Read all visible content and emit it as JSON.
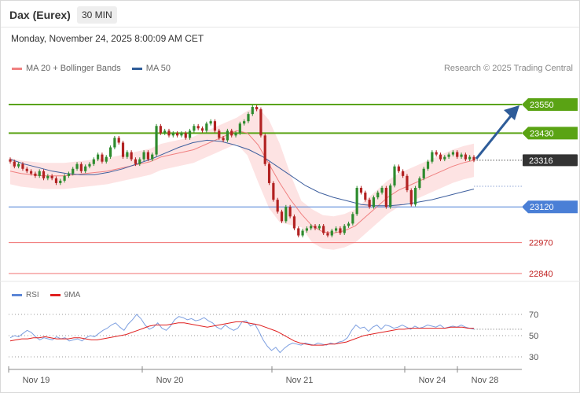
{
  "header": {
    "title": "Dax (Eurex)",
    "timeframe": "30 MIN",
    "datetime": "Monday, November 24, 2025 8:00:09 AM CET",
    "credit": "Research © 2025 Trading Central"
  },
  "legend_main": [
    {
      "label": "MA 20 + Bollinger Bands",
      "color": "#f08080"
    },
    {
      "label": "MA 50",
      "color": "#2e5c99"
    }
  ],
  "legend_rsi": [
    {
      "label": "RSI",
      "color": "#5b86d6"
    },
    {
      "label": "9MA",
      "color": "#e02020"
    }
  ],
  "colors": {
    "up": "#2e8b2e",
    "down": "#b22222",
    "bollinger_fill": "#fde3e3",
    "ma20": "#f08080",
    "ma50": "#3e5f9e",
    "resistance": "#5aa314",
    "support": "#4a7fd6",
    "lower_support": "#f07070",
    "current": "#333333",
    "arrow": "#2e5c99"
  },
  "chart_data": [
    {
      "type": "candlestick",
      "x_labels": [
        "Nov 19",
        "Nov 20",
        "Nov 21",
        "Nov 24",
        "Nov 28"
      ],
      "current_price": 23316,
      "levels": [
        {
          "label": "23550",
          "value": 23550,
          "kind": "resistance"
        },
        {
          "label": "23430",
          "value": 23430,
          "kind": "resistance"
        },
        {
          "label": "23316",
          "value": 23316,
          "kind": "current"
        },
        {
          "label": "23120",
          "value": 23120,
          "kind": "support"
        },
        {
          "label": "22970",
          "value": 22970,
          "kind": "lower_support"
        },
        {
          "label": "22840",
          "value": 22840,
          "kind": "lower_support"
        }
      ],
      "closes": [
        23310,
        23290,
        23300,
        23280,
        23270,
        23260,
        23250,
        23270,
        23240,
        23250,
        23240,
        23220,
        23230,
        23250,
        23260,
        23280,
        23300,
        23270,
        23290,
        23300,
        23320,
        23340,
        23310,
        23330,
        23370,
        23410,
        23390,
        23330,
        23350,
        23320,
        23300,
        23320,
        23350,
        23320,
        23340,
        23460,
        23430,
        23440,
        23420,
        23430,
        23420,
        23430,
        23410,
        23440,
        23460,
        23450,
        23440,
        23470,
        23480,
        23440,
        23410,
        23400,
        23440,
        23420,
        23430,
        23470,
        23480,
        23510,
        23540,
        23530,
        23420,
        23300,
        23220,
        23150,
        23100,
        23060,
        23120,
        23080,
        23030,
        23000,
        23020,
        23030,
        23040,
        23030,
        23040,
        23010,
        23000,
        23020,
        23030,
        23010,
        23040,
        23050,
        23090,
        23200,
        23180,
        23150,
        23120,
        23160,
        23180,
        23200,
        23120,
        23210,
        23290,
        23270,
        23250,
        23190,
        23130,
        23200,
        23240,
        23280,
        23310,
        23350,
        23340,
        23320,
        23330,
        23340,
        23350,
        23330,
        23340,
        23320,
        23330,
        23316
      ],
      "ma20": [
        23270,
        23260,
        23255,
        23250,
        23250,
        23250,
        23255,
        23260,
        23265,
        23270,
        23280,
        23290,
        23300,
        23310,
        23330,
        23340,
        23350,
        23360,
        23380,
        23400,
        23420,
        23440,
        23430,
        23380,
        23300,
        23220,
        23150,
        23090,
        23040,
        23015,
        23010,
        23020,
        23040,
        23080,
        23120,
        23160,
        23190,
        23210,
        23230,
        23250,
        23270,
        23290,
        23305,
        23316
      ],
      "ma50": [
        23320,
        23300,
        23285,
        23270,
        23260,
        23255,
        23255,
        23265,
        23280,
        23300,
        23320,
        23345,
        23370,
        23390,
        23400,
        23395,
        23380,
        23360,
        23330,
        23290,
        23250,
        23210,
        23180,
        23160,
        23145,
        23130,
        23125,
        23125,
        23130,
        23140,
        23150,
        23165,
        23180,
        23195
      ],
      "rsi_axis": [
        70,
        50,
        30
      ],
      "rsi": [
        48,
        50,
        49,
        52,
        55,
        53,
        49,
        46,
        48,
        47,
        46,
        49,
        47,
        48,
        45,
        46,
        47,
        45,
        48,
        50,
        49,
        52,
        55,
        57,
        60,
        62,
        58,
        55,
        61,
        65,
        70,
        66,
        60,
        56,
        58,
        62,
        57,
        55,
        59,
        65,
        68,
        67,
        65,
        66,
        64,
        65,
        67,
        64,
        62,
        58,
        56,
        60,
        57,
        55,
        57,
        63,
        64,
        59,
        61,
        54,
        46,
        40,
        36,
        39,
        34,
        38,
        41,
        43,
        42,
        41,
        43,
        42,
        41,
        43,
        42,
        41,
        43,
        42,
        44,
        45,
        48,
        55,
        60,
        57,
        58,
        54,
        58,
        60,
        56,
        60,
        59,
        57,
        58,
        60,
        58,
        56,
        59,
        57,
        58,
        60,
        59,
        58,
        60,
        57,
        58,
        59,
        58,
        60,
        58,
        57,
        56
      ],
      "rsi_ma": [
        45,
        46,
        47,
        47,
        48,
        48,
        49,
        48,
        47,
        47,
        47,
        48,
        48,
        47,
        46,
        46,
        47,
        48,
        49,
        50,
        51,
        53,
        55,
        57,
        59,
        60,
        60,
        60,
        61,
        62,
        62,
        61,
        60,
        59,
        58,
        59,
        60,
        61,
        62,
        63,
        63,
        62,
        61,
        60,
        58,
        56,
        54,
        51,
        48,
        45,
        43,
        42,
        41,
        41,
        41,
        42,
        42,
        43,
        44,
        46,
        48,
        50,
        51,
        52,
        53,
        54,
        55,
        56,
        56,
        57,
        57,
        57,
        57,
        57,
        57,
        57,
        58,
        58,
        58,
        57,
        57
      ]
    }
  ]
}
